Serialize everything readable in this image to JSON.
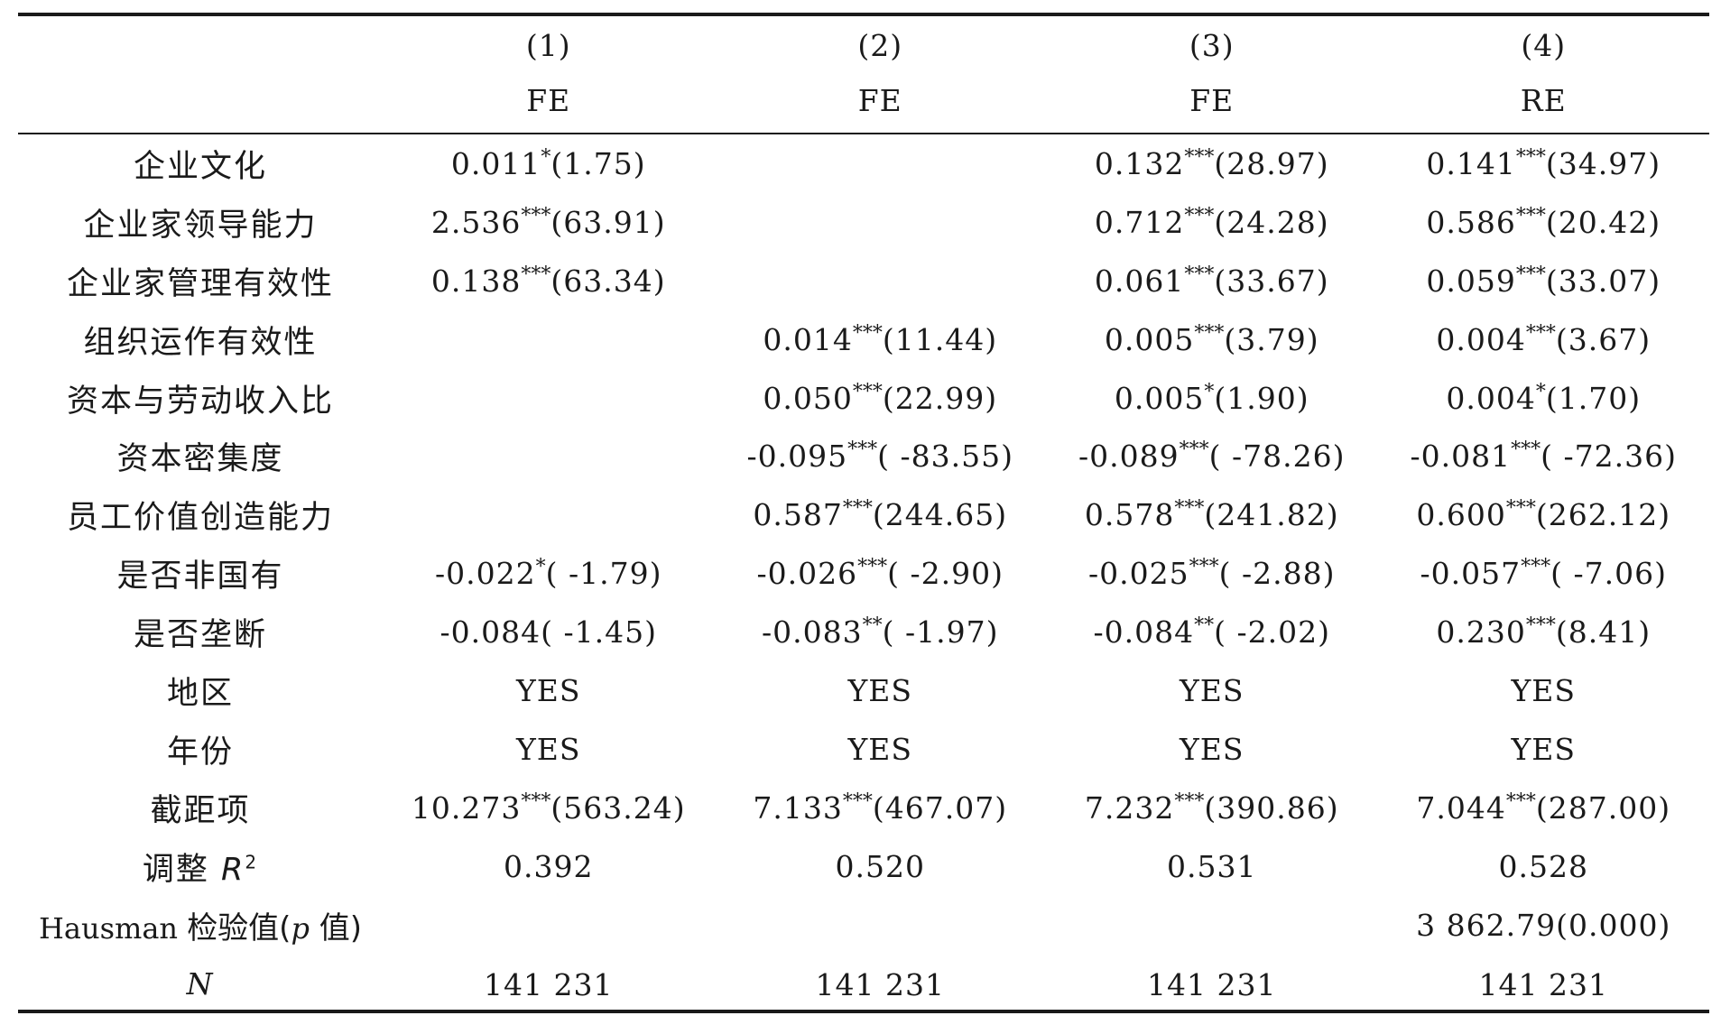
{
  "columns": [
    {
      "num": "(1)",
      "method": "FE"
    },
    {
      "num": "(2)",
      "method": "FE"
    },
    {
      "num": "(3)",
      "method": "FE"
    },
    {
      "num": "(4)",
      "method": "RE"
    }
  ],
  "rows": [
    {
      "label": "企业文化",
      "cells": [
        {
          "coef": "0.011",
          "stars": "*",
          "t": "(1.75)"
        },
        {
          "coef": "",
          "stars": "",
          "t": ""
        },
        {
          "coef": "0.132",
          "stars": "***",
          "t": "(28.97)"
        },
        {
          "coef": "0.141",
          "stars": "***",
          "t": "(34.97)"
        }
      ]
    },
    {
      "label": "企业家领导能力",
      "cells": [
        {
          "coef": "2.536",
          "stars": "***",
          "t": "(63.91)"
        },
        {
          "coef": "",
          "stars": "",
          "t": ""
        },
        {
          "coef": "0.712",
          "stars": "***",
          "t": "(24.28)"
        },
        {
          "coef": "0.586",
          "stars": "***",
          "t": "(20.42)"
        }
      ]
    },
    {
      "label": "企业家管理有效性",
      "cells": [
        {
          "coef": "0.138",
          "stars": "***",
          "t": "(63.34)"
        },
        {
          "coef": "",
          "stars": "",
          "t": ""
        },
        {
          "coef": "0.061",
          "stars": "***",
          "t": "(33.67)"
        },
        {
          "coef": "0.059",
          "stars": "***",
          "t": "(33.07)"
        }
      ]
    },
    {
      "label": "组织运作有效性",
      "cells": [
        {
          "coef": "",
          "stars": "",
          "t": ""
        },
        {
          "coef": "0.014",
          "stars": "***",
          "t": "(11.44)"
        },
        {
          "coef": "0.005",
          "stars": "***",
          "t": "(3.79)"
        },
        {
          "coef": "0.004",
          "stars": "***",
          "t": "(3.67)"
        }
      ]
    },
    {
      "label": "资本与劳动收入比",
      "cells": [
        {
          "coef": "",
          "stars": "",
          "t": ""
        },
        {
          "coef": "0.050",
          "stars": "***",
          "t": "(22.99)"
        },
        {
          "coef": "0.005",
          "stars": "*",
          "t": "(1.90)"
        },
        {
          "coef": "0.004",
          "stars": "*",
          "t": "(1.70)"
        }
      ]
    },
    {
      "label": "资本密集度",
      "cells": [
        {
          "coef": "",
          "stars": "",
          "t": ""
        },
        {
          "coef": "-0.095",
          "stars": "***",
          "t": "( -83.55)"
        },
        {
          "coef": "-0.089",
          "stars": "***",
          "t": "( -78.26)"
        },
        {
          "coef": "-0.081",
          "stars": "***",
          "t": "( -72.36)"
        }
      ]
    },
    {
      "label": "员工价值创造能力",
      "cells": [
        {
          "coef": "",
          "stars": "",
          "t": ""
        },
        {
          "coef": "0.587",
          "stars": "***",
          "t": "(244.65)"
        },
        {
          "coef": "0.578",
          "stars": "***",
          "t": "(241.82)"
        },
        {
          "coef": "0.600",
          "stars": "***",
          "t": "(262.12)"
        }
      ]
    },
    {
      "label": "是否非国有",
      "cells": [
        {
          "coef": "-0.022",
          "stars": "*",
          "t": "( -1.79)"
        },
        {
          "coef": "-0.026",
          "stars": "***",
          "t": "( -2.90)"
        },
        {
          "coef": "-0.025",
          "stars": "***",
          "t": "( -2.88)"
        },
        {
          "coef": "-0.057",
          "stars": "***",
          "t": "( -7.06)"
        }
      ]
    },
    {
      "label": "是否垄断",
      "cells": [
        {
          "coef": "-0.084",
          "stars": "",
          "t": "( -1.45)"
        },
        {
          "coef": "-0.083",
          "stars": "**",
          "t": "( -1.97)"
        },
        {
          "coef": "-0.084",
          "stars": "**",
          "t": "( -2.02)"
        },
        {
          "coef": "0.230",
          "stars": "***",
          "t": "(8.41)"
        }
      ]
    },
    {
      "label": "地区",
      "cells": [
        {
          "coef": "YES",
          "stars": "",
          "t": ""
        },
        {
          "coef": "YES",
          "stars": "",
          "t": ""
        },
        {
          "coef": "YES",
          "stars": "",
          "t": ""
        },
        {
          "coef": "YES",
          "stars": "",
          "t": ""
        }
      ]
    },
    {
      "label": "年份",
      "cells": [
        {
          "coef": "YES",
          "stars": "",
          "t": ""
        },
        {
          "coef": "YES",
          "stars": "",
          "t": ""
        },
        {
          "coef": "YES",
          "stars": "",
          "t": ""
        },
        {
          "coef": "YES",
          "stars": "",
          "t": ""
        }
      ]
    },
    {
      "label": "截距项",
      "cells": [
        {
          "coef": "10.273",
          "stars": "***",
          "t": "(563.24)"
        },
        {
          "coef": "7.133",
          "stars": "***",
          "t": "(467.07)"
        },
        {
          "coef": "7.232",
          "stars": "***",
          "t": "(390.86)"
        },
        {
          "coef": "7.044",
          "stars": "***",
          "t": "(287.00)"
        }
      ]
    }
  ],
  "adj_r2": {
    "label_prefix": "调整 ",
    "label_var": "R",
    "label_sup": "2",
    "values": [
      "0.392",
      "0.520",
      "0.531",
      "0.528"
    ]
  },
  "hausman": {
    "label_prefix": "Hausman ",
    "label_zh1": "检验值(",
    "label_var": "p",
    "label_zh2": " 值)",
    "values": [
      "",
      "",
      "",
      "3 862.79(0.000)"
    ]
  },
  "n_row": {
    "label": "N",
    "values": [
      "141 231",
      "141 231",
      "141 231",
      "141 231"
    ]
  }
}
